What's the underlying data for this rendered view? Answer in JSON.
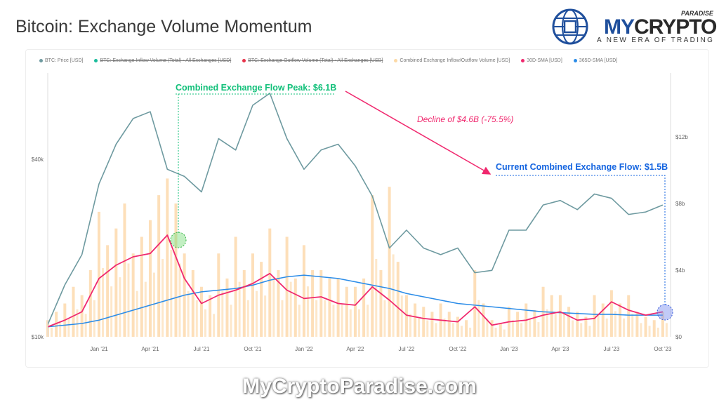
{
  "title": "Bitcoin: Exchange Volume Momentum",
  "logo": {
    "my": "MY",
    "crypto": "CRYPTO",
    "paradise": "PARADISE",
    "tagline": "A NEW ERA OF TRADING"
  },
  "watermark": "MyCryptoParadise.com",
  "chart_data": {
    "type": "line",
    "title": "Bitcoin: Exchange Volume Momentum",
    "legend": [
      {
        "label": "BTC: Price [USD]",
        "color": "#6e9aa0",
        "disabled": false
      },
      {
        "label": "BTC: Exchange Inflow Volume (Total) - All Exchanges [USD]",
        "color": "#1abc9c",
        "disabled": true
      },
      {
        "label": "BTC: Exchange Outflow Volume (Total) - All Exchanges [USD]",
        "color": "#e8334a",
        "disabled": true
      },
      {
        "label": "Combined Exchange Inflow/Outflow Volume [USD]",
        "color": "#fcd9a6",
        "disabled": false
      },
      {
        "label": "30D-SMA [USD]",
        "color": "#f0286e",
        "disabled": false
      },
      {
        "label": "365D-SMA [USD]",
        "color": "#2b8ce8",
        "disabled": false
      }
    ],
    "x_ticks": [
      "Jan '21",
      "Apr '21",
      "Jul '21",
      "Oct '21",
      "Jan '22",
      "Apr '22",
      "Jul '22",
      "Oct '22",
      "Jan '23",
      "Apr '23",
      "Jul '23",
      "Oct '23"
    ],
    "left_axis": {
      "scale": "log",
      "ticks": [
        {
          "v": 10,
          "label": "$10k"
        },
        {
          "v": 40,
          "label": "$40k"
        }
      ],
      "unit": "k USD"
    },
    "right_axis": {
      "ticks": [
        {
          "v": 0,
          "label": "$0"
        },
        {
          "v": 4,
          "label": "$4b"
        },
        {
          "v": 8,
          "label": "$8b"
        },
        {
          "v": 12,
          "label": "$12b"
        }
      ],
      "unit": "B USD"
    },
    "monthly_start": "Oct 2020",
    "btc_price_k": [
      11,
      15,
      19,
      33,
      45,
      55,
      58,
      37,
      35,
      31,
      47,
      43,
      61,
      67,
      47,
      37,
      43,
      45,
      38,
      30,
      20,
      23,
      20,
      19,
      20,
      16.5,
      16.8,
      23,
      23,
      28,
      29,
      27,
      30.5,
      29.5,
      26,
      26.5,
      28
    ],
    "sma30_b": [
      0.6,
      1.0,
      1.5,
      3.5,
      4.3,
      4.8,
      5.0,
      6.1,
      3.5,
      2.0,
      2.5,
      2.8,
      3.2,
      3.8,
      2.8,
      2.3,
      2.4,
      2.0,
      1.9,
      3.0,
      2.2,
      1.3,
      1.1,
      1.0,
      0.9,
      1.8,
      0.7,
      0.9,
      1.0,
      1.3,
      1.5,
      1.0,
      1.1,
      2.1,
      1.6,
      1.3,
      1.5
    ],
    "sma365_b": [
      0.6,
      0.7,
      0.8,
      1.0,
      1.3,
      1.6,
      1.9,
      2.2,
      2.5,
      2.7,
      2.8,
      2.9,
      3.1,
      3.4,
      3.6,
      3.7,
      3.6,
      3.5,
      3.3,
      3.1,
      2.9,
      2.6,
      2.4,
      2.2,
      2.0,
      1.9,
      1.8,
      1.7,
      1.6,
      1.5,
      1.45,
      1.4,
      1.35,
      1.35,
      1.3,
      1.3,
      1.3
    ],
    "combined_volume_semimonthly_b": [
      1.0,
      1.5,
      2.0,
      3.0,
      2.5,
      4.0,
      7.5,
      5.5,
      6.5,
      8.0,
      5.0,
      6.0,
      7.0,
      8.5,
      9.5,
      8.0,
      5.0,
      4.0,
      3.0,
      2.5,
      5.0,
      3.5,
      6.0,
      4.0,
      5.0,
      4.5,
      6.5,
      4.0,
      6.0,
      3.5,
      5.5,
      4.0,
      4.0,
      3.5,
      3.5,
      3.0,
      3.0,
      3.5,
      8.5,
      4.0,
      9.0,
      4.5,
      2.5,
      2.0,
      1.8,
      1.5,
      2.0,
      1.5,
      1.2,
      1.0,
      4.0,
      2.0,
      1.0,
      0.8,
      1.8,
      1.5,
      2.0,
      1.6,
      3.0,
      2.5,
      2.5,
      1.8,
      1.5,
      1.2,
      2.5,
      2.0,
      2.8,
      2.0,
      2.5,
      1.5,
      1.2,
      1.0,
      1.5
    ],
    "annotations": {
      "peak": "Combined Exchange Flow Peak: $6.1B",
      "decline": "Decline of $4.6B (-75.5%)",
      "current": "Current Combined Exchange Flow: $1.5B"
    }
  }
}
